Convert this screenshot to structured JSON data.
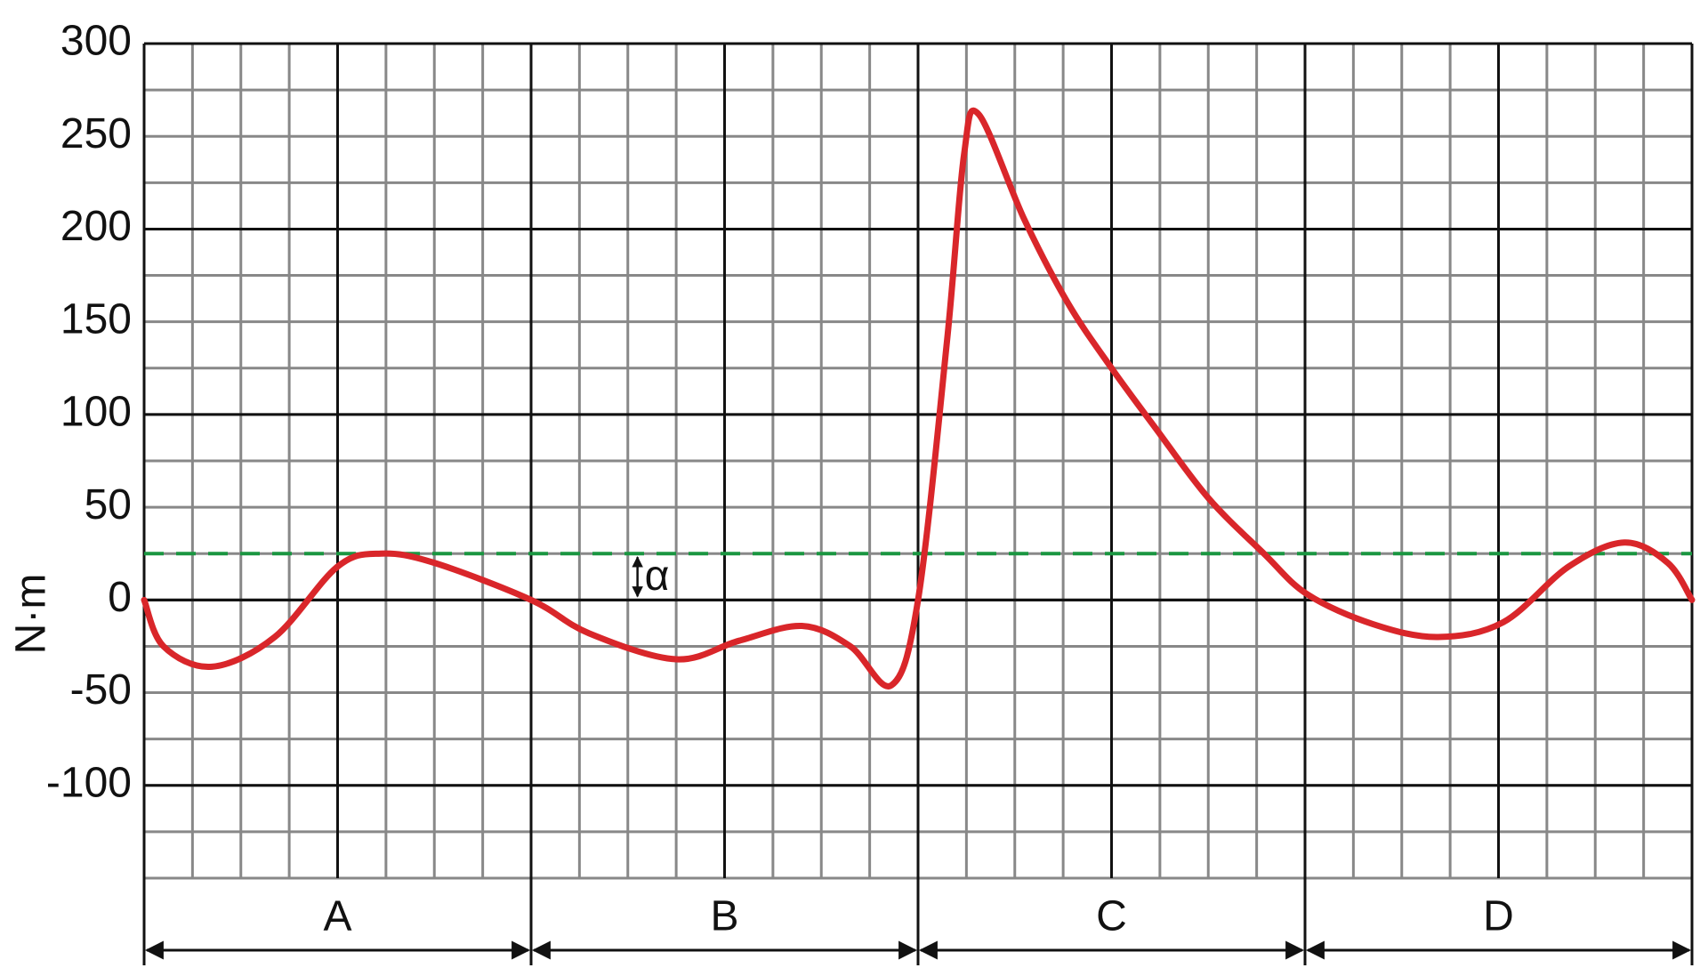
{
  "chart_data": {
    "type": "line",
    "y_label": "N·m",
    "x": [
      0,
      0.4,
      1.4,
      2.7,
      4.0,
      4.9,
      6.0,
      8.0,
      9.2,
      11.0,
      12.3,
      13.6,
      14.6,
      15.45,
      16.0,
      16.6,
      16.95,
      17.25,
      18.2,
      19.1,
      20.0,
      20.9,
      22.0,
      23.15,
      24.05,
      25.4,
      26.75,
      28.1,
      29.45,
      30.6,
      31.5,
      32.0
    ],
    "series": [
      {
        "color": "#d9262a",
        "values": [
          0,
          -25,
          -36,
          -20,
          18,
          25,
          20,
          0,
          -18,
          -32,
          -22,
          -14,
          -25,
          -46,
          0,
          140,
          240,
          262,
          205,
          160,
          125,
          93,
          55,
          25,
          3,
          -13,
          -20,
          -12,
          18,
          31,
          20,
          0
        ]
      }
    ],
    "xlim": [
      0,
      32
    ],
    "ylim": [
      -150,
      300
    ],
    "yticks": [
      -100,
      -50,
      0,
      50,
      100,
      150,
      200,
      250,
      300
    ],
    "grid": {
      "x_minor": 1,
      "x_major": 4,
      "y_minor": 25,
      "y_major": 100
    },
    "reference_line": {
      "value": 25,
      "color": "#1a9641"
    },
    "annotation": {
      "text": "α",
      "x": 10.2,
      "from": 0,
      "to": 25
    },
    "sections": [
      {
        "label": "A",
        "from": 0,
        "to": 8
      },
      {
        "label": "B",
        "from": 8,
        "to": 16
      },
      {
        "label": "C",
        "from": 16,
        "to": 24
      },
      {
        "label": "D",
        "from": 24,
        "to": 32
      }
    ]
  }
}
